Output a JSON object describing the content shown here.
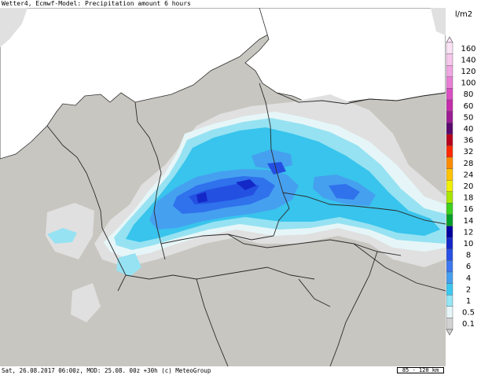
{
  "title": "Wetter4, Ecmwf-Model: Precipitation amount 6 hours",
  "footer": "Sat, 26.08.2017 06:00z, MOD: 25.08. 00z +30h (c) MeteoGroup",
  "scale_label": "85 - 120 km",
  "legend": {
    "unit": "l/m2",
    "items": [
      {
        "label": "160",
        "color": "#fbe3f6"
      },
      {
        "label": "140",
        "color": "#f6c7ec"
      },
      {
        "label": "120",
        "color": "#f0a6e2"
      },
      {
        "label": "100",
        "color": "#e87fd4"
      },
      {
        "label": "80",
        "color": "#db4fc3"
      },
      {
        "label": "60",
        "color": "#c52dac"
      },
      {
        "label": "50",
        "color": "#9b1c93"
      },
      {
        "label": "40",
        "color": "#5a0a6e"
      },
      {
        "label": "36",
        "color": "#b8001c"
      },
      {
        "label": "32",
        "color": "#ff2a00"
      },
      {
        "label": "28",
        "color": "#ff8c00"
      },
      {
        "label": "24",
        "color": "#ffc300"
      },
      {
        "label": "20",
        "color": "#f0f000"
      },
      {
        "label": "18",
        "color": "#a8e600"
      },
      {
        "label": "16",
        "color": "#3cd21e"
      },
      {
        "label": "14",
        "color": "#00a02a"
      },
      {
        "label": "12",
        "color": "#0000a0"
      },
      {
        "label": "10",
        "color": "#1428c8"
      },
      {
        "label": "8",
        "color": "#2850e6"
      },
      {
        "label": "6",
        "color": "#3c78f0"
      },
      {
        "label": "4",
        "color": "#46a0f0"
      },
      {
        "label": "2",
        "color": "#3cc8f0"
      },
      {
        "label": "1",
        "color": "#96e6f5"
      },
      {
        "label": "0.5",
        "color": "#e6f5f8"
      },
      {
        "label": "0.1",
        "color": "#d2d2d2"
      }
    ]
  },
  "colors": {
    "background": "#c8c6c0",
    "sea": "#ffffff",
    "light_precip": "#e2e2e2",
    "border": "#2a2a2a"
  }
}
